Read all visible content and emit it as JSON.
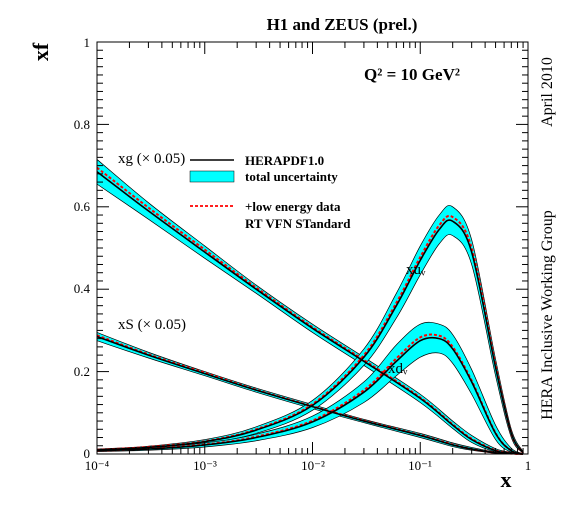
{
  "chart_data": {
    "type": "line",
    "title": "H1 and ZEUS (prel.)",
    "q2_label": "Q² = 10 GeV²",
    "xlabel": "x",
    "ylabel": "xf",
    "xscale": "log",
    "xlim": [
      0.0001,
      1
    ],
    "ylim": [
      0,
      1
    ],
    "x_ticks": [
      "10⁻⁴",
      "10⁻³",
      "10⁻²",
      "10⁻¹",
      "1"
    ],
    "y_ticks": [
      "0",
      "0.2",
      "0.4",
      "0.6",
      "0.8",
      "1"
    ],
    "side_labels": {
      "date": "April 2010",
      "group": "HERA Inclusive Working Group"
    },
    "legend": {
      "central": "HERAPDF1.0",
      "band": "total uncertainty",
      "dashed_line1": "+low energy data",
      "dashed_line2": "RT VFN STandard"
    },
    "colors": {
      "band": "#00ffff",
      "central": "#000000",
      "dashed": "#ff0000"
    },
    "series": [
      {
        "name": "xg (× 0.05)",
        "x": [
          0.0001,
          0.0003,
          0.001,
          0.003,
          0.01,
          0.03,
          0.1,
          0.2,
          0.3,
          0.5,
          0.7,
          0.9
        ],
        "central": [
          0.685,
          0.59,
          0.49,
          0.4,
          0.305,
          0.225,
          0.135,
          0.07,
          0.035,
          0.008,
          0.002,
          0.0
        ],
        "upper": [
          0.715,
          0.61,
          0.505,
          0.41,
          0.315,
          0.235,
          0.145,
          0.08,
          0.045,
          0.013,
          0.004,
          0.0
        ],
        "lower": [
          0.655,
          0.57,
          0.475,
          0.39,
          0.295,
          0.215,
          0.125,
          0.062,
          0.028,
          0.005,
          0.001,
          0.0
        ],
        "dashed": [
          0.695,
          0.598,
          0.496,
          0.404,
          0.308,
          0.228,
          0.137,
          0.072,
          0.037,
          0.009,
          0.002,
          0.0
        ]
      },
      {
        "name": "xS (× 0.05)",
        "x": [
          0.0001,
          0.0003,
          0.001,
          0.003,
          0.01,
          0.03,
          0.1,
          0.2,
          0.3,
          0.5,
          0.7,
          0.9
        ],
        "central": [
          0.285,
          0.24,
          0.195,
          0.155,
          0.115,
          0.08,
          0.045,
          0.022,
          0.012,
          0.003,
          0.001,
          0.0
        ],
        "upper": [
          0.295,
          0.247,
          0.2,
          0.16,
          0.12,
          0.084,
          0.05,
          0.027,
          0.016,
          0.005,
          0.002,
          0.0
        ],
        "lower": [
          0.275,
          0.233,
          0.19,
          0.15,
          0.11,
          0.076,
          0.04,
          0.018,
          0.009,
          0.002,
          0.0,
          0.0
        ],
        "dashed": [
          0.288,
          0.242,
          0.197,
          0.156,
          0.116,
          0.081,
          0.046,
          0.023,
          0.012,
          0.003,
          0.001,
          0.0
        ]
      },
      {
        "name": "xuᵥ",
        "x": [
          0.0001,
          0.0003,
          0.001,
          0.003,
          0.01,
          0.03,
          0.06,
          0.1,
          0.15,
          0.2,
          0.3,
          0.5,
          0.7,
          0.9
        ],
        "central": [
          0.01,
          0.016,
          0.03,
          0.058,
          0.118,
          0.235,
          0.36,
          0.47,
          0.545,
          0.565,
          0.49,
          0.21,
          0.05,
          0.003
        ],
        "upper": [
          0.012,
          0.019,
          0.035,
          0.066,
          0.13,
          0.255,
          0.39,
          0.505,
          0.58,
          0.6,
          0.52,
          0.23,
          0.06,
          0.006
        ],
        "lower": [
          0.008,
          0.013,
          0.025,
          0.05,
          0.106,
          0.215,
          0.33,
          0.435,
          0.51,
          0.53,
          0.46,
          0.19,
          0.04,
          0.002
        ],
        "dashed": [
          0.01,
          0.017,
          0.031,
          0.06,
          0.121,
          0.24,
          0.367,
          0.478,
          0.555,
          0.575,
          0.5,
          0.215,
          0.05,
          0.003
        ]
      },
      {
        "name": "xdᵥ",
        "x": [
          0.0001,
          0.0003,
          0.001,
          0.003,
          0.01,
          0.03,
          0.06,
          0.1,
          0.15,
          0.2,
          0.3,
          0.5,
          0.7,
          0.9
        ],
        "central": [
          0.008,
          0.012,
          0.022,
          0.04,
          0.078,
          0.15,
          0.225,
          0.275,
          0.28,
          0.255,
          0.175,
          0.05,
          0.008,
          0.0
        ],
        "upper": [
          0.01,
          0.015,
          0.027,
          0.048,
          0.092,
          0.175,
          0.265,
          0.315,
          0.315,
          0.29,
          0.205,
          0.07,
          0.014,
          0.001
        ],
        "lower": [
          0.006,
          0.009,
          0.017,
          0.032,
          0.064,
          0.125,
          0.19,
          0.235,
          0.245,
          0.22,
          0.145,
          0.035,
          0.004,
          0.0
        ],
        "dashed": [
          0.008,
          0.013,
          0.023,
          0.042,
          0.081,
          0.155,
          0.232,
          0.283,
          0.287,
          0.26,
          0.178,
          0.051,
          0.008,
          0.0
        ]
      }
    ],
    "curve_labels": {
      "xg": "xg (× 0.05)",
      "xs": "xS (× 0.05)",
      "xu": "xuᵥ",
      "xd": "xdᵥ"
    }
  }
}
